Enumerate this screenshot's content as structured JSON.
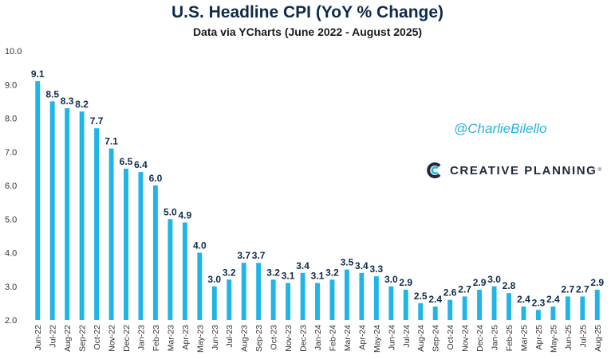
{
  "chart_data": {
    "type": "bar",
    "title": "U.S. Headline CPI (YoY % Change)",
    "subtitle": "Data via YCharts (June 2022 - August 2025)",
    "xlabel": "",
    "ylabel": "",
    "ylim": [
      2.0,
      10.0
    ],
    "yticks": [
      "2.0",
      "3.0",
      "4.0",
      "5.0",
      "6.0",
      "7.0",
      "8.0",
      "9.0",
      "10.0"
    ],
    "grid": false,
    "bar_color": "#1fb5e6",
    "categories": [
      "Jun-22",
      "Jul-22",
      "Aug-22",
      "Sep-22",
      "Oct-22",
      "Nov-22",
      "Dec-22",
      "Jan-23",
      "Feb-23",
      "Mar-23",
      "Apr-23",
      "May-23",
      "Jun-23",
      "Jul-23",
      "Aug-23",
      "Sep-23",
      "Oct-23",
      "Nov-23",
      "Dec-23",
      "Jan-24",
      "Feb-24",
      "Mar-24",
      "Apr-24",
      "May-24",
      "Jun-24",
      "Jul-24",
      "Aug-24",
      "Sep-24",
      "Oct-24",
      "Nov-24",
      "Dec-24",
      "Jan-25",
      "Feb-25",
      "Mar-25",
      "Apr-25",
      "May-25",
      "Jun-25",
      "Jul-25",
      "Aug-25"
    ],
    "values": [
      9.1,
      8.5,
      8.3,
      8.2,
      7.7,
      7.1,
      6.5,
      6.4,
      6.0,
      5.0,
      4.9,
      4.0,
      3.0,
      3.2,
      3.7,
      3.7,
      3.2,
      3.1,
      3.4,
      3.1,
      3.2,
      3.5,
      3.4,
      3.3,
      3.0,
      2.9,
      2.5,
      2.4,
      2.6,
      2.7,
      2.9,
      3.0,
      2.8,
      2.4,
      2.3,
      2.4,
      2.7,
      2.7,
      2.9
    ],
    "labels": [
      "9.1",
      "8.5",
      "8.3",
      "8.2",
      "7.7",
      "7.1",
      "6.5",
      "6.4",
      "6.0",
      "5.0",
      "4.9",
      "4.0",
      "3.0",
      "3.2",
      "3.7",
      "3.7",
      "3.2",
      "3.1",
      "3.4",
      "3.1",
      "3.2",
      "3.5",
      "3.4",
      "3.3",
      "3.0",
      "2.9",
      "2.5",
      "2.4",
      "2.6",
      "2.7",
      "2.9",
      "3.0",
      "2.8",
      "2.4",
      "2.3",
      "2.4",
      "2.7",
      "2.7",
      "2.9"
    ]
  },
  "watermark": {
    "handle": "@CharlieBilello",
    "logo_text": "CREATIVE PLANNING",
    "logo_tm": "®",
    "handle_color": "#27b3e3",
    "logo_color": "#1e2a3a"
  }
}
